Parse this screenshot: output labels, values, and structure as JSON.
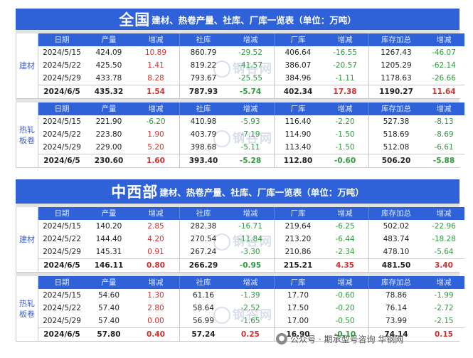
{
  "section1": {
    "title_big": "全国",
    "title_small": "建材、热卷产量、社库、厂库一览表（单位：万吨）",
    "blocks": [
      {
        "label": "建材",
        "headers": [
          "日期",
          "产量",
          "增减",
          "社库",
          "增减",
          "厂库",
          "增减",
          "库存加总",
          "增减"
        ],
        "rows": [
          [
            "2024/5/15",
            "424.09",
            "10.89",
            "860.79",
            "-29.52",
            "406.64",
            "-16.55",
            "1267.43",
            "-46.07"
          ],
          [
            "2024/5/22",
            "425.50",
            "1.41",
            "819.22",
            "-41.57",
            "386.07",
            "-20.57",
            "1205.29",
            "-62.14"
          ],
          [
            "2024/5/29",
            "433.78",
            "8.28",
            "793.67",
            "-25.55",
            "384.96",
            "-1.11",
            "1178.63",
            "-26.66"
          ],
          [
            "2024/6/5",
            "435.32",
            "1.54",
            "787.93",
            "-5.74",
            "402.34",
            "17.38",
            "1190.27",
            "11.64"
          ]
        ]
      },
      {
        "label": "热轧板卷",
        "headers": [
          "日期",
          "产量",
          "增减",
          "社库",
          "增减",
          "厂库",
          "增减",
          "库存加总",
          "增减"
        ],
        "rows": [
          [
            "2024/5/15",
            "221.90",
            "-6.20",
            "410.98",
            "-5.93",
            "116.40",
            "-2.20",
            "527.38",
            "-8.13"
          ],
          [
            "2024/5/22",
            "223.80",
            "1.90",
            "403.79",
            "-7.19",
            "114.90",
            "-1.50",
            "518.69",
            "-8.69"
          ],
          [
            "2024/5/29",
            "229.00",
            "5.20",
            "398.68",
            "-5.11",
            "113.40",
            "-1.50",
            "512.08",
            "-6.61"
          ],
          [
            "2024/6/5",
            "230.60",
            "1.60",
            "393.40",
            "-5.28",
            "112.80",
            "-0.60",
            "506.20",
            "-5.88"
          ]
        ]
      }
    ]
  },
  "section2": {
    "title_big": "中西部",
    "title_small": "建材、热卷产量、社库、厂库一览表（单位：万吨）",
    "blocks": [
      {
        "label": "建材",
        "headers": [
          "日期",
          "产量",
          "增减",
          "社库",
          "增减",
          "厂库",
          "增减",
          "库存加总",
          "增减"
        ],
        "rows": [
          [
            "2024/5/15",
            "140.20",
            "2.85",
            "282.38",
            "-16.71",
            "219.64",
            "-6.25",
            "502.02",
            "-22.96"
          ],
          [
            "2024/5/22",
            "144.40",
            "4.20",
            "270.54",
            "-11.84",
            "213.20",
            "-6.44",
            "483.74",
            "-18.28"
          ],
          [
            "2024/5/29",
            "145.31",
            "0.91",
            "267.24",
            "-3.30",
            "210.86",
            "-2.34",
            "478.10",
            "-5.64"
          ],
          [
            "2024/6/5",
            "146.11",
            "0.80",
            "266.29",
            "-0.95",
            "215.21",
            "4.35",
            "481.50",
            "3.40"
          ]
        ]
      },
      {
        "label": "热轧板卷",
        "headers": [
          "日期",
          "产量",
          "增减",
          "社库",
          "增减",
          "厂库",
          "增减",
          "库存加总",
          "增减"
        ],
        "rows": [
          [
            "2024/5/15",
            "54.60",
            "1.30",
            "61.16",
            "-1.39",
            "17.70",
            "-0.60",
            "78.86",
            "-1.99"
          ],
          [
            "2024/5/22",
            "57.40",
            "2.80",
            "58.64",
            "-2.52",
            "17.50",
            "-0.20",
            "76.14",
            "-2.72"
          ],
          [
            "2024/5/29",
            "57.40",
            "0.00",
            "56.99",
            "-1.65",
            "17.00",
            "-0.50",
            "73.99",
            "-2.15"
          ],
          [
            "2024/6/5",
            "57.80",
            "0.40",
            "57.24",
            "0.25",
            "16.90",
            "-0.10",
            "74.14",
            "0.15"
          ]
        ]
      }
    ]
  },
  "watermark": {
    "text": "钢谷网"
  },
  "footer": {
    "text": "公众号 · 期承型号咨询 华钢网",
    "icon": "wechat-icon"
  },
  "colors": {
    "header_blue": "#2f62d8",
    "positive": "#d03030",
    "negative": "#2e9a3e"
  }
}
